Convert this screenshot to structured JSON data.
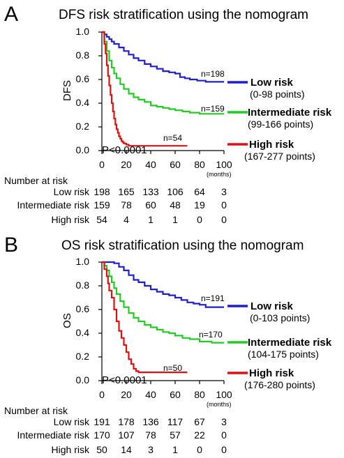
{
  "chart_data": [
    {
      "type": "line",
      "panel": "A",
      "title": "DFS risk stratification using the nomogram",
      "ylabel": "DFS",
      "xlabel": "(months)",
      "xlim": [
        0,
        100
      ],
      "ylim": [
        0,
        1
      ],
      "x_ticks": [
        0,
        20,
        40,
        60,
        80,
        100
      ],
      "y_ticks": [
        "0.0",
        "0.2",
        "0.4",
        "0.6",
        "0.8",
        "1.0"
      ],
      "p_value": "P<0.0001",
      "series": [
        {
          "name": "Low risk",
          "range": "(0-98 points)",
          "n_label": "n=198",
          "color": "#1f1fcc",
          "x": [
            0,
            2,
            4,
            6,
            8,
            10,
            14,
            18,
            22,
            26,
            30,
            35,
            40,
            45,
            50,
            55,
            60,
            64,
            68,
            72,
            78,
            85,
            92,
            100
          ],
          "y": [
            1.0,
            0.98,
            0.96,
            0.94,
            0.92,
            0.9,
            0.87,
            0.84,
            0.81,
            0.78,
            0.76,
            0.73,
            0.71,
            0.69,
            0.67,
            0.66,
            0.65,
            0.62,
            0.61,
            0.6,
            0.59,
            0.58,
            0.58,
            0.58
          ]
        },
        {
          "name": "Intermediate risk",
          "range": "(99-166 points)",
          "n_label": "n=159",
          "color": "#22cc22",
          "x": [
            0,
            2,
            4,
            6,
            8,
            10,
            12,
            15,
            18,
            22,
            26,
            30,
            35,
            40,
            45,
            50,
            55,
            60,
            66,
            72,
            80,
            90,
            100
          ],
          "y": [
            1.0,
            0.92,
            0.84,
            0.76,
            0.7,
            0.65,
            0.61,
            0.56,
            0.52,
            0.48,
            0.45,
            0.43,
            0.41,
            0.38,
            0.37,
            0.36,
            0.35,
            0.34,
            0.33,
            0.32,
            0.31,
            0.31,
            0.31
          ]
        },
        {
          "name": "High risk",
          "range": "(167-277 points)",
          "n_label": "n=54",
          "color": "#dd1111",
          "x": [
            0,
            2,
            3,
            4,
            5,
            6,
            7,
            8,
            9,
            10,
            11,
            12,
            13,
            14,
            15,
            16,
            17,
            18,
            20,
            22,
            25,
            40,
            55,
            70
          ],
          "y": [
            1.0,
            0.9,
            0.82,
            0.72,
            0.63,
            0.55,
            0.47,
            0.4,
            0.33,
            0.27,
            0.22,
            0.18,
            0.15,
            0.12,
            0.1,
            0.08,
            0.07,
            0.06,
            0.05,
            0.04,
            0.04,
            0.04,
            0.04,
            0.04
          ]
        }
      ],
      "risk_table": {
        "header": "Number at risk",
        "rows": [
          {
            "label": "Low risk",
            "values": [
              "198",
              "165",
              "133",
              "106",
              "64",
              "3"
            ]
          },
          {
            "label": "Intermediate risk",
            "values": [
              "159",
              "78",
              "60",
              "48",
              "19",
              "0"
            ]
          },
          {
            "label": "High risk",
            "values": [
              "54",
              "4",
              "1",
              "1",
              "0",
              "0"
            ]
          }
        ]
      }
    },
    {
      "type": "line",
      "panel": "B",
      "title": "OS risk stratification using the nomogram",
      "ylabel": "OS",
      "xlabel": "(months)",
      "xlim": [
        0,
        100
      ],
      "ylim": [
        0,
        1
      ],
      "x_ticks": [
        0,
        20,
        40,
        60,
        80,
        100
      ],
      "y_ticks": [
        "0.0",
        "0.2",
        "0.4",
        "0.6",
        "0.8",
        "1.0"
      ],
      "p_value": "P<0.0001",
      "series": [
        {
          "name": "Low risk",
          "range": "(0-103 points)",
          "n_label": "n=191",
          "color": "#1f1fcc",
          "x": [
            0,
            4,
            8,
            10,
            14,
            18,
            22,
            26,
            30,
            35,
            40,
            45,
            50,
            55,
            60,
            65,
            70,
            75,
            80,
            85,
            90,
            100
          ],
          "y": [
            1.0,
            1.0,
            1.0,
            0.99,
            0.96,
            0.93,
            0.89,
            0.85,
            0.83,
            0.8,
            0.77,
            0.75,
            0.73,
            0.72,
            0.7,
            0.68,
            0.66,
            0.65,
            0.64,
            0.62,
            0.62,
            0.62
          ]
        },
        {
          "name": "Intermediate risk",
          "range": "(104-175 points)",
          "n_label": "n=170",
          "color": "#22cc22",
          "x": [
            0,
            2,
            4,
            6,
            8,
            10,
            12,
            15,
            18,
            22,
            26,
            30,
            35,
            40,
            45,
            50,
            55,
            60,
            66,
            72,
            80,
            90,
            100
          ],
          "y": [
            1.0,
            0.97,
            0.93,
            0.88,
            0.83,
            0.78,
            0.73,
            0.67,
            0.62,
            0.57,
            0.53,
            0.5,
            0.47,
            0.45,
            0.43,
            0.41,
            0.4,
            0.38,
            0.36,
            0.35,
            0.33,
            0.32,
            0.32
          ]
        },
        {
          "name": "High risk",
          "range": "(176-280 points)",
          "n_label": "n=50",
          "color": "#dd1111",
          "x": [
            0,
            2,
            4,
            5,
            6,
            8,
            10,
            12,
            14,
            16,
            18,
            20,
            22,
            24,
            26,
            28,
            30,
            35,
            40,
            55,
            70
          ],
          "y": [
            1.0,
            0.94,
            0.88,
            0.82,
            0.76,
            0.7,
            0.6,
            0.5,
            0.42,
            0.36,
            0.3,
            0.24,
            0.18,
            0.14,
            0.1,
            0.08,
            0.07,
            0.07,
            0.07,
            0.07,
            0.07
          ]
        }
      ],
      "risk_table": {
        "header": "Number at risk",
        "rows": [
          {
            "label": "Low risk",
            "values": [
              "191",
              "178",
              "136",
              "117",
              "67",
              "3"
            ]
          },
          {
            "label": "Intermediate risk",
            "values": [
              "170",
              "107",
              "78",
              "57",
              "22",
              "0"
            ]
          },
          {
            "label": "High risk",
            "values": [
              "50",
              "14",
              "3",
              "1",
              "0",
              "0"
            ]
          }
        ]
      }
    }
  ]
}
